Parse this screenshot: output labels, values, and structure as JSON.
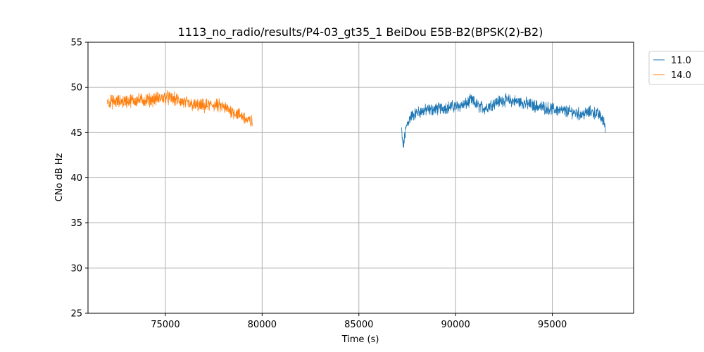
{
  "chart_data": {
    "type": "line",
    "title": "1113_no_radio/results/P4-03_gt35_1 BeiDou E5B-B2(BPSK(2)-B2)",
    "xlabel": "Time (s)",
    "ylabel": "CNo dB Hz",
    "xlim": [
      71000,
      99200
    ],
    "ylim": [
      25,
      55
    ],
    "xticks": [
      75000,
      80000,
      85000,
      90000,
      95000
    ],
    "yticks": [
      25,
      30,
      35,
      40,
      45,
      50,
      55
    ],
    "xtick_labels": [
      "75000",
      "80000",
      "85000",
      "90000",
      "95000"
    ],
    "ytick_labels": [
      "25",
      "30",
      "35",
      "40",
      "45",
      "50",
      "55"
    ],
    "grid": true,
    "legend_position": "outside-top-right",
    "series": [
      {
        "name": "11.0",
        "color": "#1f77b4",
        "noise": 0.55,
        "x": [
          87200,
          87250,
          87300,
          87400,
          87500,
          87700,
          88000,
          88500,
          89000,
          89500,
          90000,
          90500,
          90800,
          91200,
          91500,
          92000,
          92500,
          93000,
          93500,
          94000,
          94500,
          95000,
          95500,
          96000,
          96500,
          97000,
          97300,
          97500,
          97600,
          97700,
          97750
        ],
        "values": [
          45.5,
          44.0,
          43.5,
          45.0,
          46.0,
          46.8,
          47.2,
          47.5,
          47.6,
          47.8,
          47.9,
          48.1,
          48.6,
          47.9,
          47.7,
          48.3,
          48.6,
          48.5,
          48.3,
          48.0,
          47.8,
          47.6,
          47.4,
          47.3,
          47.0,
          47.3,
          47.1,
          46.8,
          46.3,
          46.0,
          45.6
        ]
      },
      {
        "name": "14.0",
        "color": "#ff7f0e",
        "noise": 0.6,
        "x": [
          72000,
          72500,
          73000,
          73500,
          74000,
          74500,
          75000,
          75500,
          76000,
          76500,
          77000,
          77500,
          78000,
          78500,
          79000,
          79200,
          79400,
          79500
        ],
        "values": [
          48.4,
          48.4,
          48.5,
          48.6,
          48.6,
          48.7,
          48.9,
          48.7,
          48.3,
          48.0,
          47.9,
          48.1,
          47.8,
          47.3,
          46.8,
          46.4,
          46.2,
          46.1
        ]
      }
    ]
  }
}
